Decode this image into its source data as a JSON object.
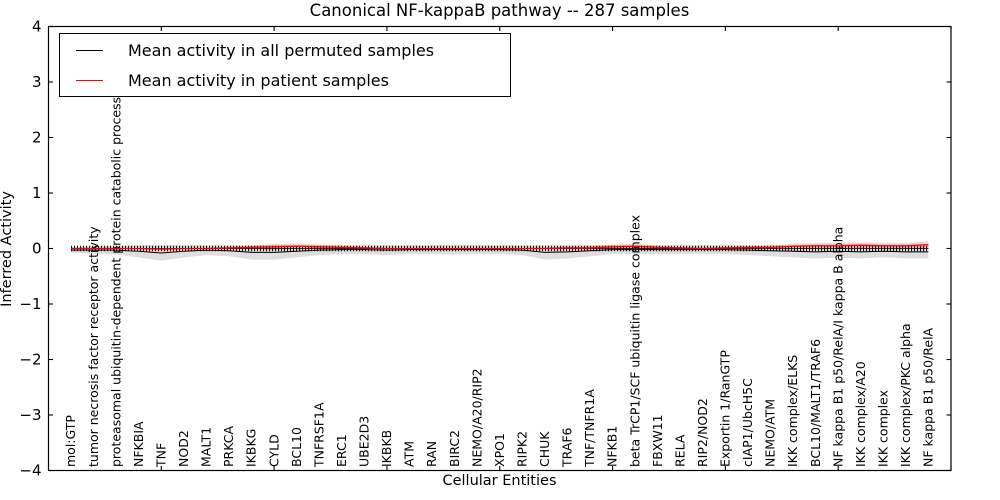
{
  "figure": {
    "title": "Canonical NF-kappaB pathway -- 287 samples",
    "xlabel": "Cellular Entities",
    "ylabel": "Inferred Activity"
  },
  "legend": {
    "items": [
      {
        "label": "Mean activity in all permuted samples",
        "color": "#000000"
      },
      {
        "label": "Mean activity in patient samples",
        "color": "#ff0000"
      }
    ]
  },
  "chart_data": {
    "type": "line",
    "title": "Canonical NF-kappaB pathway -- 287 samples",
    "xlabel": "Cellular Entities",
    "ylabel": "Inferred Activity",
    "ylim": [
      -4,
      4
    ],
    "ytick_labels": [
      "4",
      "3",
      "2",
      "1",
      "0",
      "−1",
      "−2",
      "−3",
      "−4"
    ],
    "yticks": [
      4,
      3,
      2,
      1,
      0,
      -1,
      -2,
      -3,
      -4
    ],
    "xlim": [
      0,
      40
    ],
    "xticks": [
      5,
      10,
      15,
      20,
      25,
      30,
      35,
      40
    ],
    "grid": false,
    "legend_position": "upper left",
    "zero_reference_line": true,
    "categories": [
      "mol:GTP",
      "tumor necrosis factor receptor activity",
      "proteasomal ubiquitin-dependent protein catabolic process",
      "NFKBIA",
      "TNF",
      "NOD2",
      "MALT1",
      "PRKCA",
      "IKBKG",
      "CYLD",
      "BCL10",
      "TNFRSF1A",
      "ERC1",
      "UBE2D3",
      "IKBKB",
      "ATM",
      "RAN",
      "BIRC2",
      "NEMO/A20/RIP2",
      "XPO1",
      "RIPK2",
      "CHUK",
      "TRAF6",
      "TNF/TNFR1A",
      "NFKB1",
      "beta TrCP1/SCF ubiquitin ligase complex",
      "FBXW11",
      "RELA",
      "RIP2/NOD2",
      "Exportin 1/RanGTP",
      "cIAP1/UbcH5C",
      "NEMO/ATM",
      "IKK complex/ELKS",
      "BCL10/MALT1/TRAF6",
      "NF kappa B1 p50/RelA/I kappa B alpha",
      "IKK complex/A20",
      "IKK complex",
      "IKK complex/PKC alpha",
      "NF kappa B1 p50/RelA"
    ],
    "series": [
      {
        "name": "Mean activity in all permuted samples",
        "color": "#000000",
        "band_color": "rgba(0,0,0,0.13)",
        "values": [
          -0.03,
          -0.03,
          -0.03,
          -0.05,
          -0.08,
          -0.05,
          -0.03,
          -0.04,
          -0.07,
          -0.07,
          -0.05,
          -0.03,
          -0.02,
          -0.02,
          -0.03,
          -0.02,
          -0.02,
          -0.02,
          -0.02,
          -0.02,
          -0.03,
          -0.07,
          -0.06,
          -0.04,
          -0.02,
          -0.02,
          -0.02,
          -0.02,
          -0.02,
          -0.02,
          -0.03,
          -0.04,
          -0.05,
          -0.06,
          -0.05,
          -0.06,
          -0.05,
          -0.06,
          -0.06
        ],
        "band_halfwidth": [
          0.05,
          0.07,
          0.08,
          0.11,
          0.14,
          0.11,
          0.09,
          0.1,
          0.13,
          0.13,
          0.11,
          0.09,
          0.08,
          0.08,
          0.09,
          0.08,
          0.08,
          0.09,
          0.08,
          0.08,
          0.09,
          0.13,
          0.12,
          0.1,
          0.08,
          0.08,
          0.08,
          0.08,
          0.08,
          0.08,
          0.09,
          0.1,
          0.11,
          0.12,
          0.11,
          0.12,
          0.11,
          0.12,
          0.12
        ]
      },
      {
        "name": "Mean activity in patient samples",
        "color": "#ff0000",
        "band_color": "rgba(255,0,0,0.18)",
        "values": [
          0,
          0,
          0,
          0,
          -0.01,
          0,
          0,
          0.01,
          0.02,
          0.03,
          0.04,
          0.03,
          0.02,
          0.01,
          0,
          0,
          0,
          0,
          0,
          0,
          0,
          0,
          0.01,
          0.01,
          0.03,
          0.04,
          0.02,
          0.01,
          0,
          0.01,
          0.02,
          0.02,
          0.04,
          0.05,
          0.05,
          0.06,
          0.05,
          0.05,
          0.07
        ],
        "band_halfwidth": [
          0.01,
          0.01,
          0.01,
          0.01,
          0.02,
          0.01,
          0.01,
          0.02,
          0.03,
          0.05,
          0.05,
          0.04,
          0.03,
          0.02,
          0.01,
          0.01,
          0.01,
          0.01,
          0.01,
          0.01,
          0.01,
          0.02,
          0.02,
          0.03,
          0.04,
          0.05,
          0.03,
          0.02,
          0.01,
          0.02,
          0.02,
          0.03,
          0.04,
          0.05,
          0.05,
          0.05,
          0.05,
          0.05,
          0.06
        ]
      }
    ]
  }
}
